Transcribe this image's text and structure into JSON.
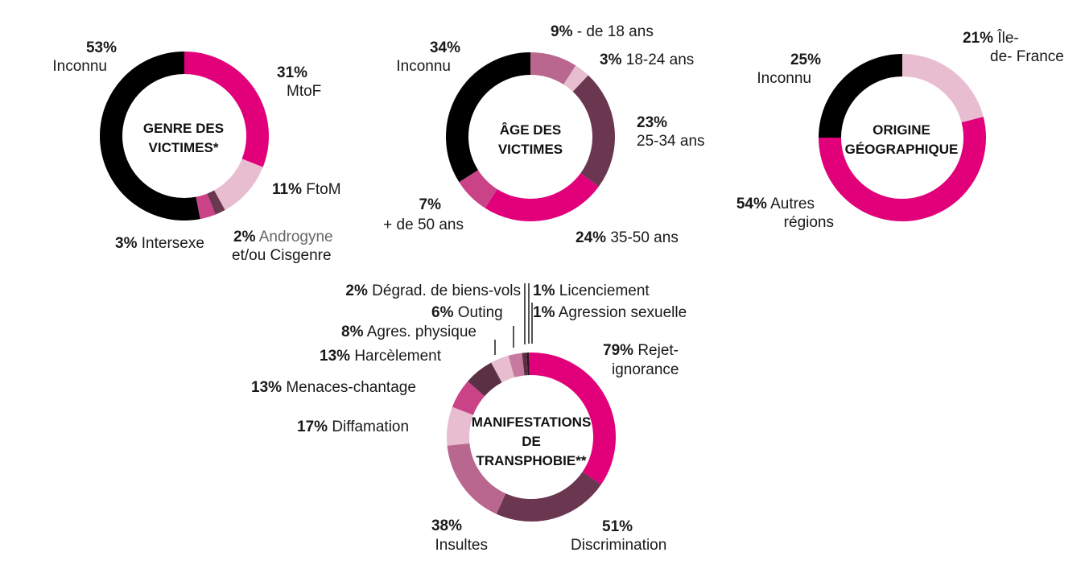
{
  "chart_data": [
    {
      "type": "pie",
      "title": "GENRE DES VICTIMES*",
      "slices": [
        {
          "pct": "31%",
          "label": "MtoF",
          "value": 31,
          "color": "#e1007a"
        },
        {
          "pct": "11%",
          "label": "FtoM",
          "value": 11,
          "color": "#e8bdd0"
        },
        {
          "pct": "2%",
          "label": "Androgyne et/ou Cisgenre",
          "label_l1": "Androgyne",
          "label_l2": "et/ou Cisgenre",
          "value": 2,
          "color": "#6b3650"
        },
        {
          "pct": "3%",
          "label": "Intersexe",
          "value": 3,
          "color": "#c94386"
        },
        {
          "pct": "53%",
          "label": "Inconnu",
          "value": 53,
          "color": "#000000"
        }
      ]
    },
    {
      "type": "pie",
      "title": "ÂGE DES VICTIMES",
      "slices": [
        {
          "pct": "9%",
          "label": "- de 18 ans",
          "value": 9,
          "color": "#b9678f"
        },
        {
          "pct": "3%",
          "label": "18-24 ans",
          "value": 3,
          "color": "#e8bdd0"
        },
        {
          "pct": "23%",
          "label": "25-34 ans",
          "value": 23,
          "color": "#6b3650"
        },
        {
          "pct": "24%",
          "label": "35-50 ans",
          "value": 24,
          "color": "#e1007a"
        },
        {
          "pct": "7%",
          "label": "+ de 50 ans",
          "value": 7,
          "color": "#c94386"
        },
        {
          "pct": "34%",
          "label": "Inconnu",
          "value": 34,
          "color": "#000000"
        }
      ]
    },
    {
      "type": "pie",
      "title": "ORIGINE GÉOGRAPHIQUE",
      "slices": [
        {
          "pct": "21%",
          "label": "Île-de- France",
          "label_l1": "Île-",
          "label_l2": "de- France",
          "value": 21,
          "color": "#e8bdd0"
        },
        {
          "pct": "54%",
          "label": "Autres régions",
          "label_l1": "Autres",
          "label_l2": "régions",
          "value": 54,
          "color": "#e1007a"
        },
        {
          "pct": "25%",
          "label": "Inconnu",
          "value": 25,
          "color": "#000000"
        }
      ]
    },
    {
      "type": "pie",
      "title": "MANIFESTATIONS DE TRANSPHOBIE**",
      "slices": [
        {
          "pct": "79%",
          "label": "Rejet-ignorance",
          "label_l1": "Rejet-",
          "label_l2": "ignorance",
          "value": 79,
          "color": "#e1007a"
        },
        {
          "pct": "51%",
          "label": "Discrimination",
          "value": 51,
          "color": "#6b3650"
        },
        {
          "pct": "38%",
          "label": "Insultes",
          "value": 38,
          "color": "#b9678f"
        },
        {
          "pct": "17%",
          "label": "Diffamation",
          "value": 17,
          "color": "#e8bdd0"
        },
        {
          "pct": "13%",
          "label": "Menaces-chantage",
          "value": 13,
          "color": "#c94386"
        },
        {
          "pct": "13%",
          "label": "Harcèlement",
          "value": 13,
          "color": "#5c3044"
        },
        {
          "pct": "8%",
          "label": "Agres. physique",
          "value": 8,
          "color": "#e8bdd0"
        },
        {
          "pct": "6%",
          "label": "Outing",
          "value": 6,
          "color": "#c77a9f"
        },
        {
          "pct": "2%",
          "label": "Dégrad. de biens-vols",
          "value": 2,
          "color": "#5c3044"
        },
        {
          "pct": "1%",
          "label": "Licenciement",
          "value": 1,
          "color": "#2a1520"
        },
        {
          "pct": "1%",
          "label": "Agression sexuelle",
          "value": 1,
          "color": "#e1007a"
        }
      ]
    }
  ]
}
